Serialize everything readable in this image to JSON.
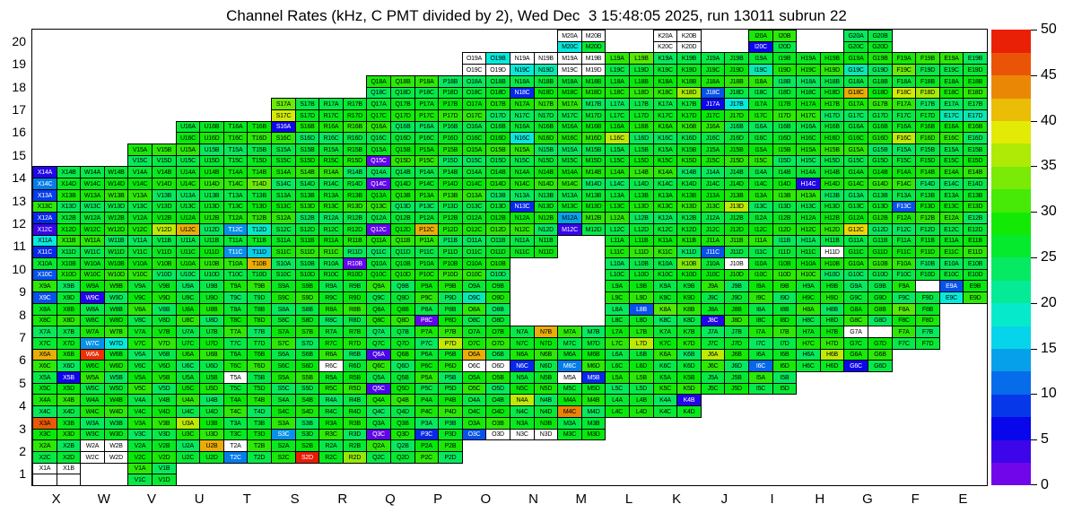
{
  "title": "Channel Rates (kHz, C PMT divided by 2), Wed Dec  3 15:48:05 2025, run 13011 subrun 22",
  "axes": {
    "x_labels": [
      "X",
      "W",
      "V",
      "U",
      "T",
      "S",
      "R",
      "Q",
      "P",
      "O",
      "N",
      "M",
      "L",
      "K",
      "J",
      "I",
      "H",
      "G",
      "F",
      "E"
    ],
    "y_labels": [
      "20",
      "19",
      "18",
      "17",
      "16",
      "15",
      "14",
      "13",
      "12",
      "11",
      "10",
      "9",
      "8",
      "7",
      "6",
      "5",
      "4",
      "3",
      "2",
      "1"
    ]
  },
  "colorbar": {
    "min": 0,
    "max": 50,
    "tick_values": [
      50,
      45,
      40,
      35,
      30,
      25,
      20,
      15,
      10,
      5,
      0
    ]
  },
  "chart_data": {
    "type": "heatmap",
    "unit": "kHz",
    "columns": [
      "X",
      "W",
      "V",
      "U",
      "T",
      "S",
      "R",
      "Q",
      "P",
      "O",
      "N",
      "M",
      "L",
      "K",
      "J",
      "I",
      "H",
      "G",
      "F",
      "E"
    ],
    "channels_per_block": [
      "A",
      "B",
      "C",
      "D"
    ],
    "rows": [
      {
        "row": 20,
        "blocks": "MKIG"
      },
      {
        "row": 19,
        "blocks": "ONMLKJIHGFE"
      },
      {
        "row": 18,
        "blocks": "QPONMLKJIHGFE"
      },
      {
        "row": 17,
        "blocks": "SRQPONMLKJIHGFE"
      },
      {
        "row": 16,
        "blocks": "UTSRQPONMLKJIHGFE"
      },
      {
        "row": 15,
        "blocks": "VUTSRQPONMLKJIHGFE"
      },
      {
        "row": 14,
        "blocks": "XWVUTSRQPONMLKJIHGFE"
      },
      {
        "row": 13,
        "blocks": "XWVUTSRQPONMLKJIHGFE"
      },
      {
        "row": 12,
        "blocks": "XWVUTSRQPONMLKJIHGFE"
      },
      {
        "row": 11,
        "blocks": "XWVUTSRQPONLKJIHGFE"
      },
      {
        "row": 10,
        "blocks": "XWVUTSRQPOLKJIHGFE"
      },
      {
        "row": 9,
        "blocks": "XWVUTSRQPOLKJIHGFE"
      },
      {
        "row": 8,
        "blocks": "XWVUTSRQPOLKJIHGF"
      },
      {
        "row": 7,
        "blocks": "XWVUTSRQPONMLKJIHGF"
      },
      {
        "row": 6,
        "blocks": "XWVUTSRQPONMLKJIHG"
      },
      {
        "row": 5,
        "blocks": "XWVUTSRQPONMLKJI"
      },
      {
        "row": 4,
        "blocks": "XWVUTSRQPONMLK"
      },
      {
        "row": 3,
        "blocks": "XWVUTSRQPONM"
      },
      {
        "row": 2,
        "blocks": "XWVUTSRQP"
      },
      {
        "row": 1,
        "blocks": "XV"
      }
    ],
    "default_rate_range": [
      24,
      30
    ],
    "rates": {
      "M20A": null,
      "M20B": null,
      "M20C": 18,
      "M20D": 26,
      "K20A": null,
      "K20B": null,
      "K20C": null,
      "K20D": null,
      "I20C": 6,
      "O19A": null,
      "O19B": 18,
      "O19C": null,
      "O19D": null,
      "N19A": null,
      "N19B": null,
      "N19C": 18,
      "N19D": 20,
      "M19A": null,
      "M19B": null,
      "M19C": null,
      "M19D": null,
      "L19B": 32,
      "I19C": 20,
      "G19C": 20,
      "F19C": 33,
      "N18C": 8,
      "J18C": 10,
      "K18D": 36,
      "G18C": 42,
      "F18C": 38,
      "F18D": 36,
      "S17A": 33,
      "S17C": 38,
      "J17A": 6,
      "J17B": 18,
      "E17C": 20,
      "E17D": 20,
      "S16A": 6,
      "N16C": 18,
      "L16C": 37,
      "F16C": 37,
      "Q15C": 2,
      "X14A": 5,
      "X14C": 12,
      "Q14C": 2,
      "H14C": 5,
      "T14D": 33,
      "X13A": 9,
      "N13C": 8,
      "J13D": 37,
      "F13C": 10,
      "X12A": 8,
      "X12C": 4,
      "V12D": 37,
      "U12C": 42,
      "T12C": 13,
      "T12D": 19,
      "Q12C": 2,
      "P12C": 42,
      "M12A": 14,
      "M12C": 4,
      "G12C": 40,
      "X11A": 18,
      "X11C": 8,
      "T11C": 13,
      "T11D": 16,
      "J11C": 10,
      "H11D": null,
      "X10C": 10,
      "T10B": 42,
      "R10B": 2,
      "K10B": 34,
      "J10B": null,
      "X9C": 10,
      "W9C": 5,
      "O9C": 20,
      "E9A": 10,
      "E9C": 18,
      "L8B": 10,
      "K8A": 32,
      "J8C": 5,
      "P8C": 2,
      "F8A": 32,
      "W7C": 13,
      "W7D": 18,
      "N7B": 42,
      "P7D": 37,
      "L7D": 37,
      "G7A": null,
      "X6A": 42,
      "W6A": 48,
      "O6A": 42,
      "O6C": null,
      "O6D": null,
      "Q6A": 3,
      "R6C": null,
      "N6C": 8,
      "M6C": 12,
      "H6B": 37,
      "G6C": 6,
      "J6A": 37,
      "I6C": 11,
      "X5B": 6,
      "T5A": null,
      "M5A": null,
      "M5B": 8,
      "Q5C": 3,
      "K4B": 5,
      "N4A": 37,
      "M4C": 44,
      "X3A": 46,
      "U3A": 37,
      "Q3C": 2,
      "P3C": 8,
      "O3C": 10,
      "O3D": null,
      "N3C": null,
      "N3D": null,
      "S3C": 13,
      "W2A": null,
      "W2B": null,
      "W2C": null,
      "W2D": null,
      "U2B": 42,
      "T2A": null,
      "T2C": 12,
      "S2D": 49,
      "R2D": 35,
      "X1A": null,
      "X1B": null
    },
    "missing_unlabeled": [
      "X1C",
      "X1D",
      "G7B",
      "F9B"
    ]
  }
}
